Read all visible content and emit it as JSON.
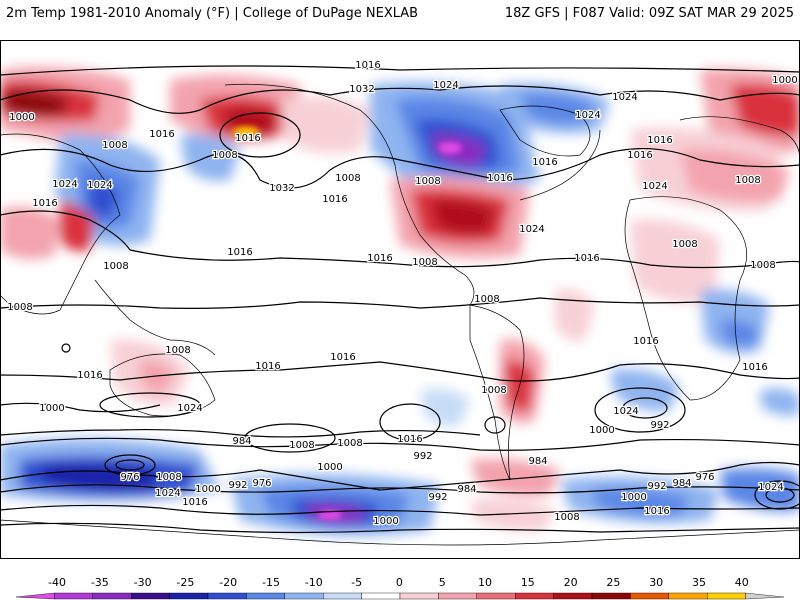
{
  "header": {
    "left": "2m Temp 1981-2010 Anomaly (°F) | College of DuPage NEXLAB",
    "right": "18Z GFS | F087 Valid: 09Z SAT MAR 29 2025"
  },
  "colorbar": {
    "ticks": [
      "-40",
      "-35",
      "-30",
      "-25",
      "-20",
      "-15",
      "-10",
      "-5",
      "0",
      "5",
      "10",
      "15",
      "20",
      "25",
      "30",
      "35",
      "40"
    ],
    "colors": [
      "#e04ae6",
      "#b23ad6",
      "#8a2bbf",
      "#3a0f8c",
      "#1c22a8",
      "#2f4fd0",
      "#5a86e6",
      "#8fb4f0",
      "#c7dcf7",
      "#ffffff",
      "#f7d0d6",
      "#f3a3ad",
      "#ea6d7a",
      "#d9323c",
      "#b0101a",
      "#8c0808",
      "#e85800",
      "#ffa300",
      "#ffd000",
      "#d0d0d0"
    ]
  },
  "contour_labels": [
    "1016",
    "1000",
    "1008",
    "1024",
    "1032",
    "1024",
    "1016",
    "1016",
    "1024",
    "1000",
    "1016",
    "1008",
    "1024",
    "1016",
    "1008",
    "1024",
    "1032",
    "1008",
    "1016",
    "1016",
    "1024",
    "1008",
    "1016",
    "1008",
    "1016",
    "1016",
    "1024",
    "1008",
    "1008",
    "1008",
    "1016",
    "1016",
    "1008",
    "1016",
    "1016",
    "1016",
    "1008",
    "1016",
    "1024",
    "1000",
    "1016",
    "1024",
    "1008",
    "1000",
    "992",
    "984",
    "1008",
    "1008",
    "1016",
    "1000",
    "984",
    "992",
    "976",
    "1008",
    "1000",
    "992",
    "976",
    "1024",
    "1016",
    "1000",
    "1008",
    "992",
    "984",
    "1000",
    "992",
    "984",
    "976",
    "1024",
    "1016",
    "1008"
  ]
}
